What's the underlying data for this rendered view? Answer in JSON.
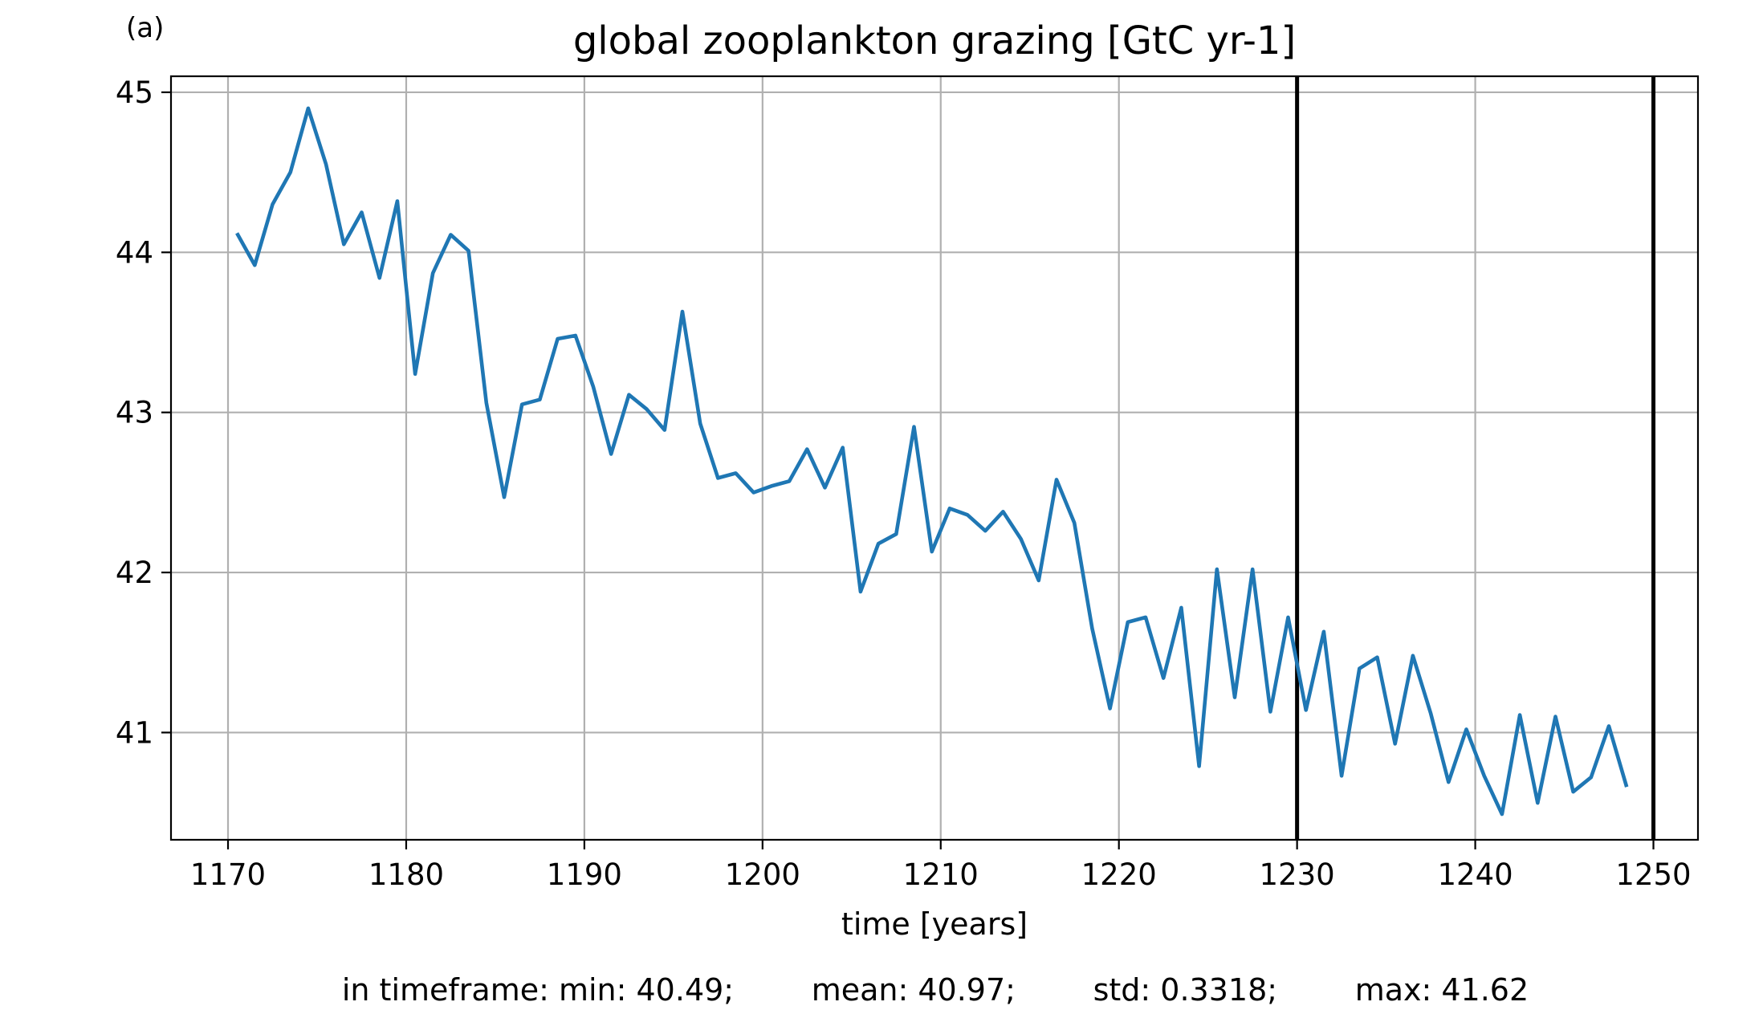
{
  "panel_label": "(a)",
  "chart_data": {
    "type": "line",
    "title": "global zooplankton grazing [GtC yr-1]",
    "xlabel": "time [years]",
    "ylabel": "",
    "xlim": [
      1166.8,
      1252.5
    ],
    "ylim": [
      40.33,
      45.1
    ],
    "xticks": [
      1170,
      1180,
      1190,
      1200,
      1210,
      1220,
      1230,
      1240,
      1250
    ],
    "yticks": [
      41,
      42,
      43,
      44,
      45
    ],
    "grid": true,
    "line_color": "#1f77b4",
    "vertical_lines": [
      1230,
      1250
    ],
    "vertical_line_color": "#000000",
    "series": [
      {
        "x": [
          1170.5,
          1171.5,
          1172.5,
          1173.5,
          1174.5,
          1175.5,
          1176.5,
          1177.5,
          1178.5,
          1179.5,
          1180.5,
          1181.5,
          1182.5,
          1183.5,
          1184.5,
          1185.5,
          1186.5,
          1187.5,
          1188.5,
          1189.5,
          1190.5,
          1191.5,
          1192.5,
          1193.5,
          1194.5,
          1195.5,
          1196.5,
          1197.5,
          1198.5,
          1199.5,
          1200.5,
          1201.5,
          1202.5,
          1203.5,
          1204.5,
          1205.5,
          1206.5,
          1207.5,
          1208.5,
          1209.5,
          1210.5,
          1211.5,
          1212.5,
          1213.5,
          1214.5,
          1215.5,
          1216.5,
          1217.5,
          1218.5,
          1219.5,
          1220.5,
          1221.5,
          1222.5,
          1223.5,
          1224.5,
          1225.5,
          1226.5,
          1227.5,
          1228.5,
          1229.5,
          1230.5,
          1231.5,
          1232.5,
          1233.5,
          1234.5,
          1235.5,
          1236.5,
          1237.5,
          1238.5,
          1239.5,
          1240.5,
          1241.5,
          1242.5,
          1243.5,
          1244.5,
          1245.5,
          1246.5,
          1247.5,
          1248.5
        ],
        "y": [
          44.12,
          43.92,
          44.3,
          44.5,
          44.9,
          44.55,
          44.05,
          44.25,
          43.84,
          44.32,
          43.24,
          43.87,
          44.11,
          44.01,
          43.06,
          42.47,
          43.05,
          43.08,
          43.46,
          43.48,
          43.16,
          42.74,
          43.11,
          43.02,
          42.89,
          43.63,
          42.93,
          42.59,
          42.62,
          42.5,
          42.54,
          42.57,
          42.77,
          42.53,
          42.78,
          41.88,
          42.18,
          42.24,
          42.91,
          42.13,
          42.4,
          42.36,
          42.26,
          42.38,
          42.21,
          41.95,
          42.58,
          42.31,
          41.65,
          41.15,
          41.69,
          41.72,
          41.34,
          41.78,
          40.79,
          42.02,
          41.22,
          42.02,
          41.13,
          41.72,
          41.14,
          41.63,
          40.73,
          41.4,
          41.47,
          40.93,
          41.48,
          41.12,
          40.69,
          41.02,
          40.73,
          40.49,
          41.11,
          40.56,
          41.1,
          40.63,
          40.72,
          41.04,
          40.66
        ]
      }
    ]
  },
  "stats": {
    "text": "in timeframe: min: 40.49;        mean: 40.97;        std: 0.3318;        max: 41.62"
  }
}
